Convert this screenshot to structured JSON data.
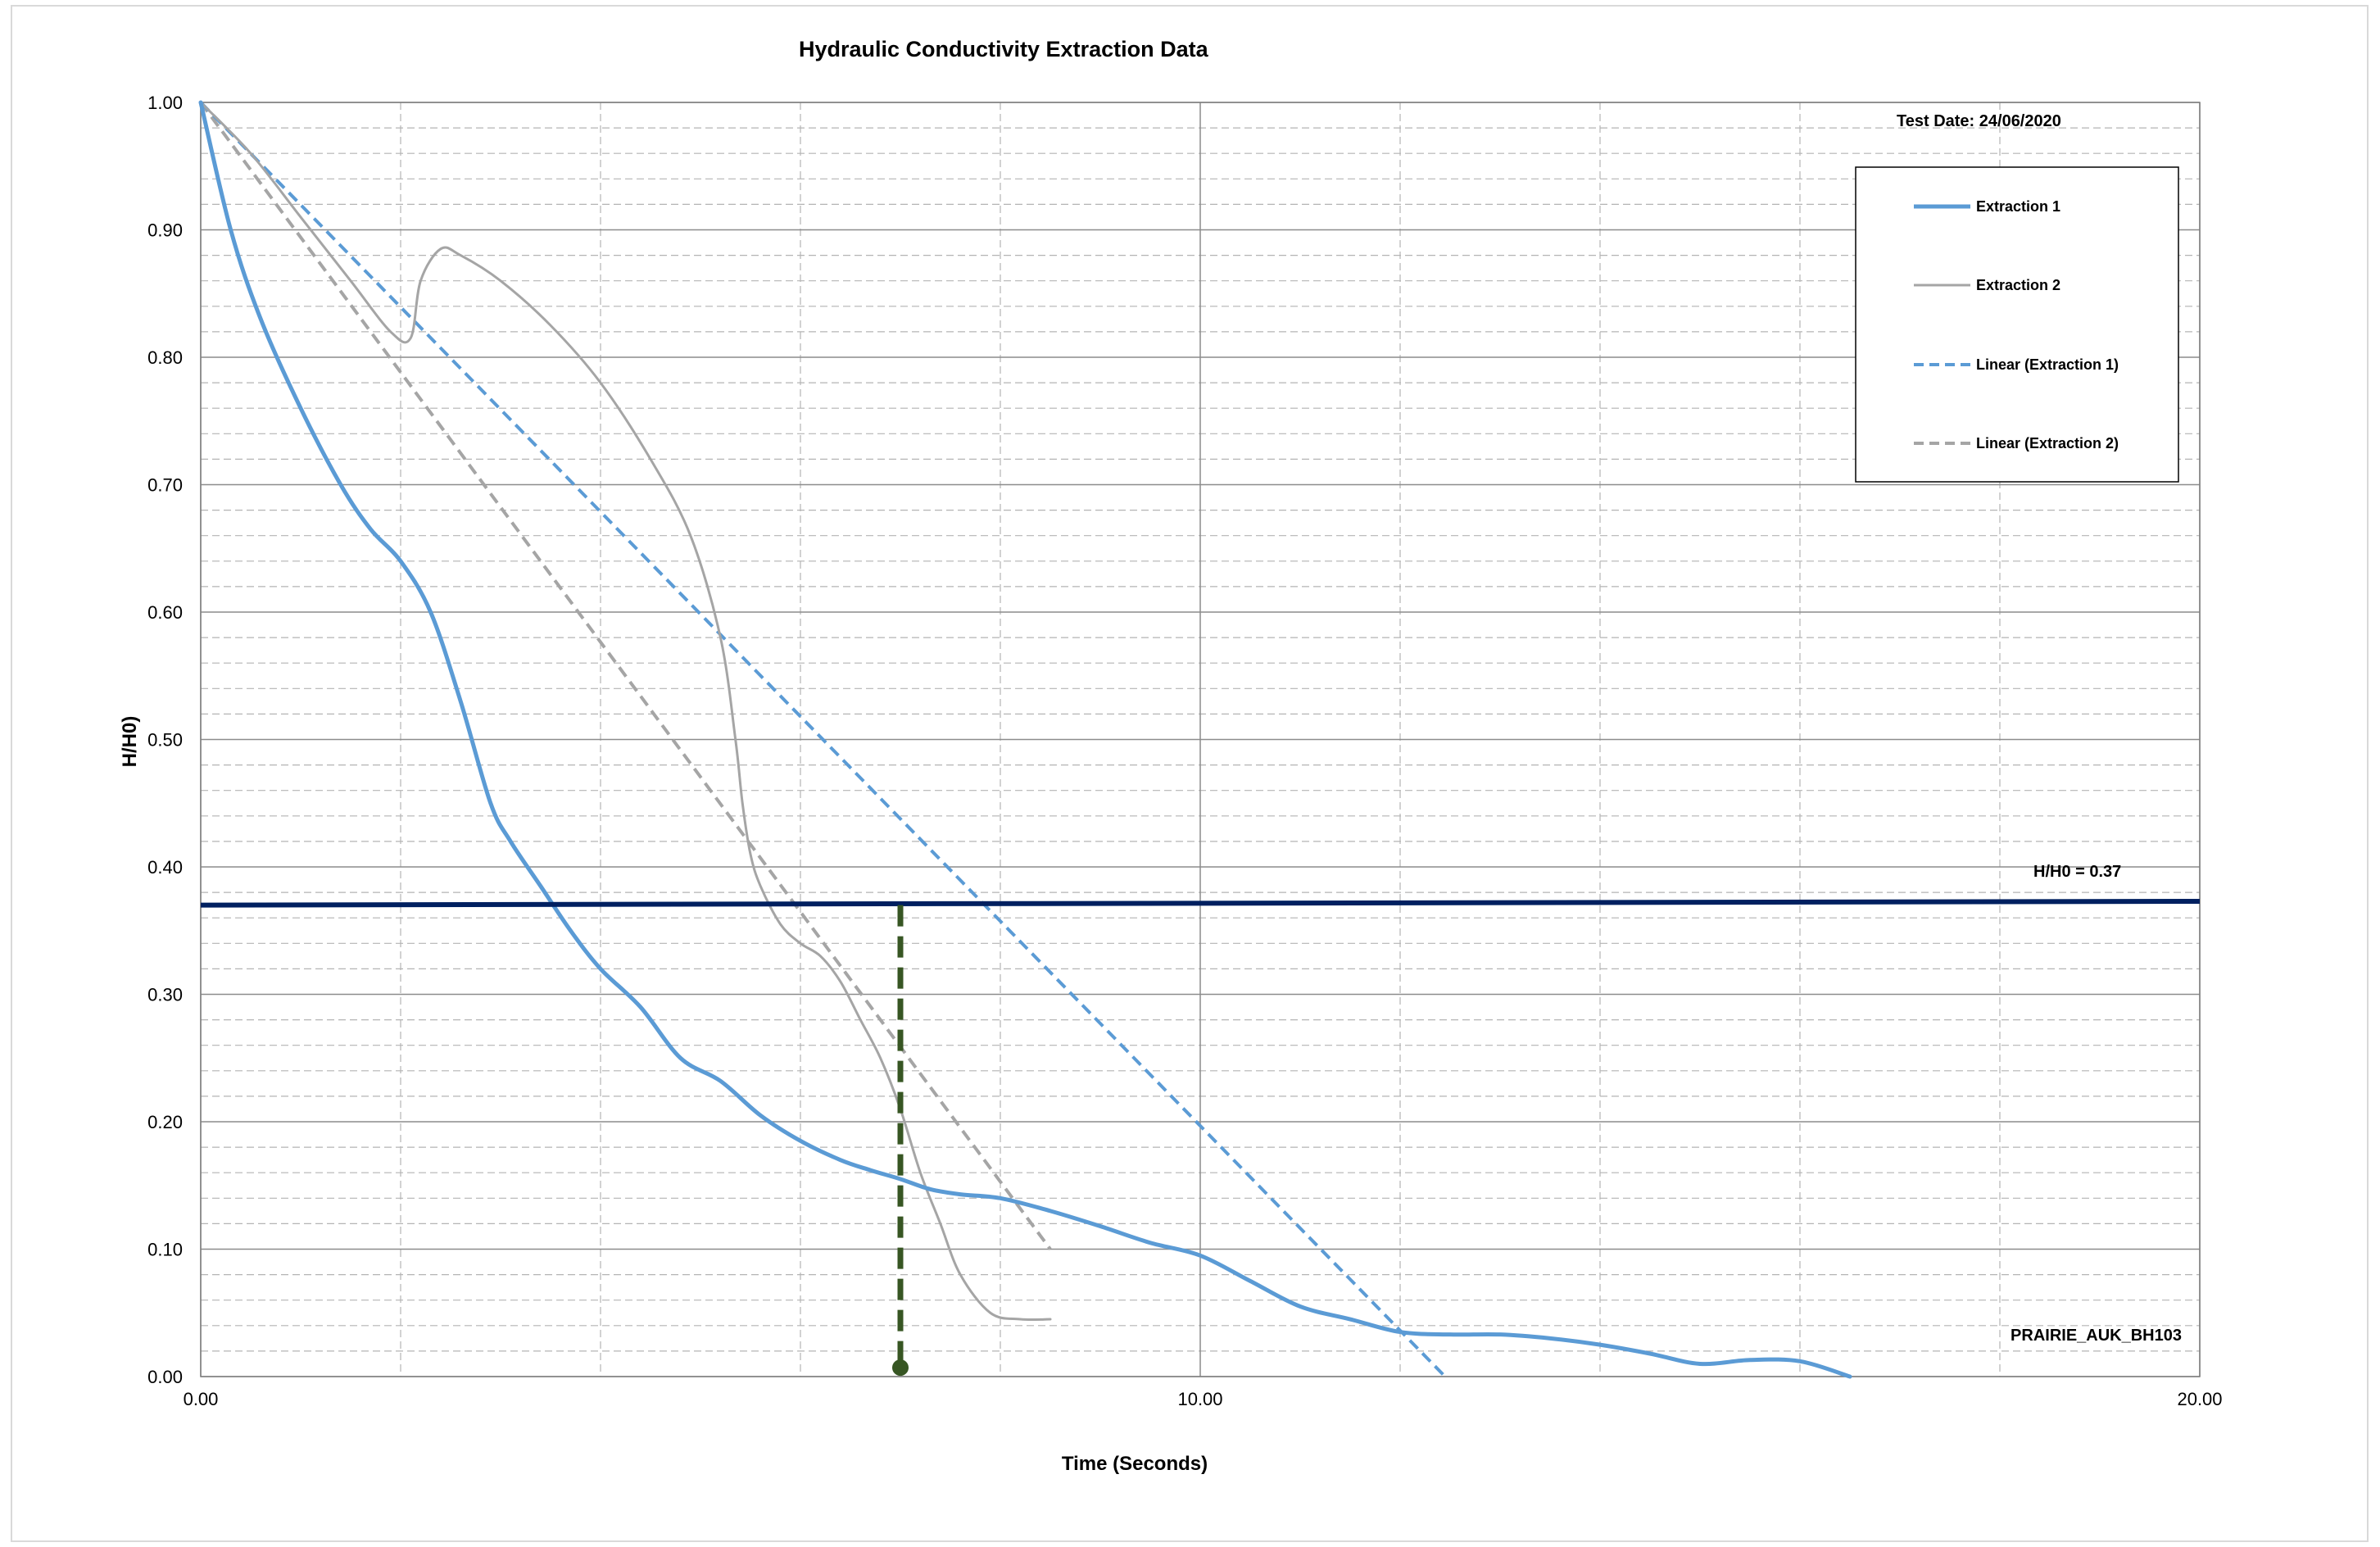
{
  "chart_data": {
    "type": "line",
    "title": "Hydraulic Conductivity Extraction Data",
    "xlabel": "Time (Seconds)",
    "ylabel": "H/H0)",
    "xlim": [
      0,
      20
    ],
    "ylim": [
      0,
      1
    ],
    "x_ticks": [
      0,
      10,
      20
    ],
    "x_tick_labels": [
      "0.00",
      "10.00",
      "20.00"
    ],
    "y_ticks": [
      0,
      0.1,
      0.2,
      0.3,
      0.4,
      0.5,
      0.6,
      0.7,
      0.8,
      0.9,
      1.0
    ],
    "y_tick_labels": [
      "0.00",
      "0.10",
      "0.20",
      "0.30",
      "0.40",
      "0.50",
      "0.60",
      "0.70",
      "0.80",
      "0.90",
      "1.00"
    ],
    "grid": true,
    "legend_position": "top-right",
    "series": [
      {
        "name": "Extraction 1",
        "style": "solid",
        "color": "#5b9bd5",
        "x": [
          0,
          0.3,
          0.6,
          1.0,
          1.4,
          1.7,
          2.0,
          2.3,
          2.6,
          2.9,
          3.1,
          3.4,
          3.7,
          4.0,
          4.4,
          4.8,
          5.2,
          5.6,
          6.0,
          6.4,
          6.7,
          7.0,
          7.3,
          7.6,
          8.0,
          8.5,
          9.0,
          9.5,
          10.0,
          10.5,
          11.0,
          11.5,
          12.0,
          12.5,
          13.0,
          13.5,
          14.0,
          14.5,
          15.0,
          15.5,
          16.0,
          16.5
        ],
        "y": [
          1.0,
          0.9,
          0.83,
          0.76,
          0.7,
          0.665,
          0.64,
          0.6,
          0.53,
          0.45,
          0.42,
          0.385,
          0.35,
          0.32,
          0.29,
          0.25,
          0.232,
          0.205,
          0.185,
          0.17,
          0.162,
          0.155,
          0.147,
          0.143,
          0.14,
          0.13,
          0.118,
          0.105,
          0.095,
          0.075,
          0.055,
          0.045,
          0.035,
          0.033,
          0.033,
          0.03,
          0.025,
          0.018,
          0.01,
          0.013,
          0.012,
          0.0
        ]
      },
      {
        "name": "Extraction 2",
        "style": "solid",
        "color": "#a5a5a5",
        "x": [
          0,
          0.5,
          1.0,
          1.5,
          1.9,
          2.1,
          2.2,
          2.4,
          2.6,
          3.0,
          3.5,
          4.0,
          4.5,
          4.9,
          5.2,
          5.35,
          5.42,
          5.5,
          5.6,
          5.8,
          6.0,
          6.2,
          6.4,
          6.6,
          6.8,
          7.0,
          7.2,
          7.4,
          7.6,
          7.9,
          8.2,
          8.5
        ],
        "y": [
          1.0,
          0.96,
          0.91,
          0.86,
          0.82,
          0.815,
          0.86,
          0.885,
          0.88,
          0.86,
          0.825,
          0.78,
          0.72,
          0.66,
          0.58,
          0.5,
          0.45,
          0.41,
          0.385,
          0.355,
          0.34,
          0.33,
          0.31,
          0.28,
          0.25,
          0.21,
          0.16,
          0.12,
          0.08,
          0.05,
          0.045,
          0.045
        ]
      },
      {
        "name": "Linear (Extraction 1)",
        "style": "dashed",
        "color": "#5b9bd5",
        "x": [
          0,
          12.45
        ],
        "y": [
          1.0,
          0.0
        ]
      },
      {
        "name": "Linear (Extraction 2)",
        "style": "dashed",
        "color": "#a5a5a5",
        "x": [
          0,
          8.5
        ],
        "y": [
          1.0,
          0.1
        ]
      }
    ],
    "reference_line": {
      "label": "H/H0 = 0.37",
      "y_start": 0.37,
      "y_end": 0.373,
      "color": "#002060"
    },
    "marker": {
      "x": 7.0,
      "y_top": 0.37,
      "y_bottom": 0.007,
      "color": "#375623"
    },
    "annotations": {
      "test_date": "Test Date: 24/06/2020",
      "site_label": "PRAIRIE_AUK_BH103"
    }
  }
}
